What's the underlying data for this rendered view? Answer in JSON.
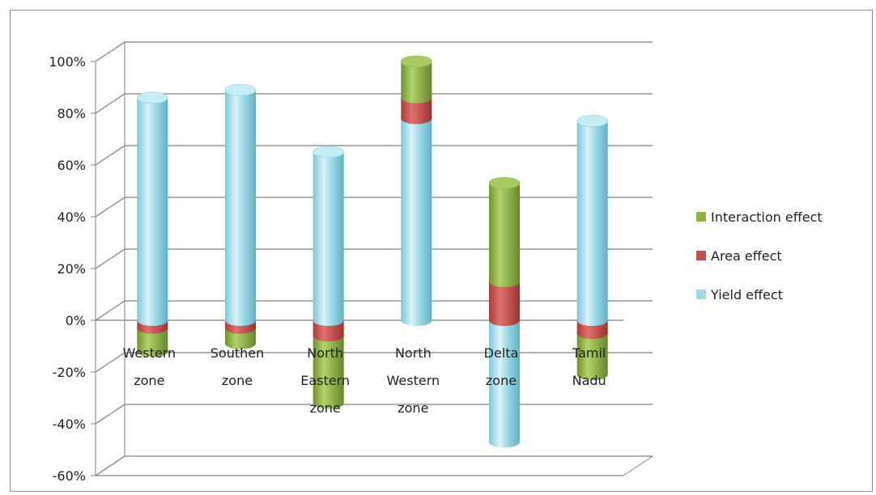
{
  "chart_data": {
    "type": "bar",
    "stacked": true,
    "percent_axis": true,
    "ylim": [
      -60,
      100
    ],
    "yticks": [
      "100%",
      "80%",
      "60%",
      "40%",
      "20%",
      "0%",
      "-20%",
      "-40%",
      "-60%"
    ],
    "ytick_values": [
      100,
      80,
      60,
      40,
      20,
      0,
      -20,
      -40,
      -60
    ],
    "categories": [
      [
        "Western",
        "zone"
      ],
      [
        "Southen",
        "zone"
      ],
      [
        "North",
        "Eastern",
        "zone"
      ],
      [
        "North",
        "Western",
        "zone"
      ],
      [
        "Delta",
        "zone"
      ],
      [
        "Tamil",
        "Nadu"
      ]
    ],
    "series": [
      {
        "name": "Yield effect",
        "values": [
          86,
          89,
          65,
          78,
          -47,
          77
        ],
        "color": "#a8dde8"
      },
      {
        "name": "Area effect",
        "values": [
          -3,
          -3,
          -6,
          8,
          15,
          -5
        ],
        "color": "#c0504d"
      },
      {
        "name": "Interaction effect",
        "values": [
          -9,
          -6,
          -26,
          14,
          38,
          -16
        ],
        "color": "#8fb244"
      }
    ],
    "legend_position": "right",
    "grid": true
  }
}
